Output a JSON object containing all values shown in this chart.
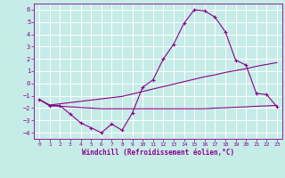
{
  "xlabel": "Windchill (Refroidissement éolien,°C)",
  "background_color": "#c6ece8",
  "grid_color": "#ffffff",
  "line_color": "#8b008b",
  "xlim": [
    -0.5,
    23.5
  ],
  "ylim": [
    -4.5,
    6.5
  ],
  "xtick_vals": [
    0,
    1,
    2,
    3,
    4,
    5,
    6,
    7,
    8,
    9,
    10,
    11,
    12,
    13,
    14,
    15,
    16,
    17,
    18,
    19,
    20,
    21,
    22,
    23
  ],
  "ytick_vals": [
    -4,
    -3,
    -2,
    -1,
    0,
    1,
    2,
    3,
    4,
    5,
    6
  ],
  "x": [
    0,
    1,
    2,
    3,
    4,
    5,
    6,
    7,
    8,
    9,
    10,
    11,
    12,
    13,
    14,
    15,
    16,
    17,
    18,
    19,
    20,
    21,
    22,
    23
  ],
  "line1_y": [
    -1.3,
    -1.8,
    -1.8,
    -2.5,
    -3.2,
    -3.6,
    -4.0,
    -3.3,
    -3.8,
    -2.4,
    -0.3,
    0.3,
    2.0,
    3.2,
    4.9,
    6.0,
    5.9,
    5.4,
    4.2,
    1.9,
    1.5,
    -0.8,
    -0.9,
    -1.9
  ],
  "line2_y": [
    -1.3,
    -1.75,
    -1.65,
    -1.55,
    -1.45,
    -1.35,
    -1.25,
    -1.15,
    -1.05,
    -0.85,
    -0.65,
    -0.45,
    -0.25,
    -0.05,
    0.15,
    0.35,
    0.55,
    0.7,
    0.9,
    1.05,
    1.2,
    1.4,
    1.55,
    1.7
  ],
  "line3_y": [
    -1.3,
    -1.8,
    -1.85,
    -1.9,
    -1.95,
    -2.0,
    -2.05,
    -2.05,
    -2.05,
    -2.05,
    -2.05,
    -2.05,
    -2.05,
    -2.05,
    -2.05,
    -2.05,
    -2.05,
    -2.0,
    -1.97,
    -1.93,
    -1.9,
    -1.85,
    -1.82,
    -1.78
  ]
}
